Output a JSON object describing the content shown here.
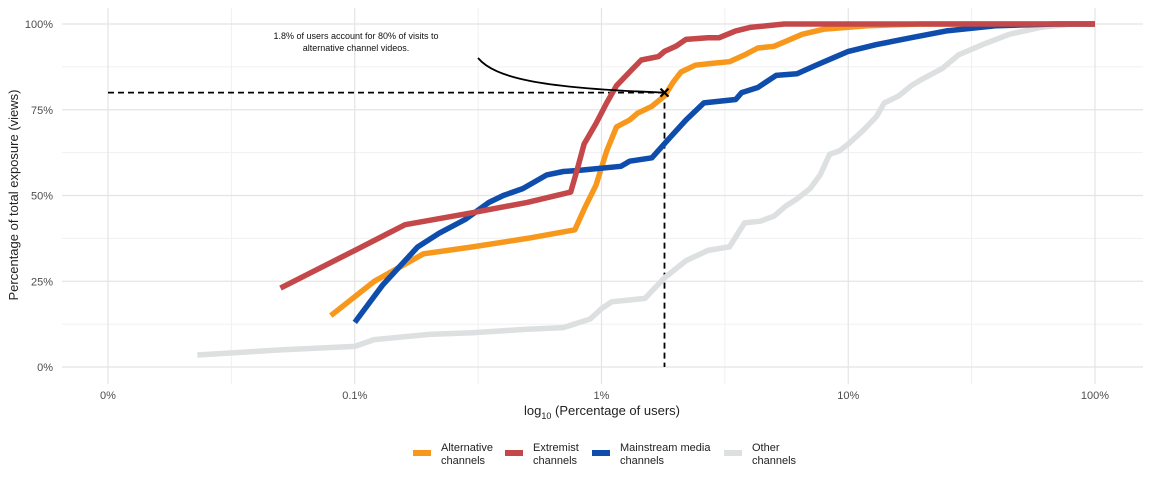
{
  "chart_data": {
    "type": "line",
    "xlabel_prefix": "log",
    "xlabel_sub": "10",
    "xlabel_rest": " (Percentage of users)",
    "ylabel": "Percentage of total exposure (views)",
    "x_scale": "log",
    "x_ticks": [
      {
        "value": 0.01,
        "label": "0%"
      },
      {
        "value": 0.1,
        "label": "0.1%"
      },
      {
        "value": 1,
        "label": "1%"
      },
      {
        "value": 10,
        "label": "10%"
      },
      {
        "value": 100,
        "label": "100%"
      }
    ],
    "y_ticks": [
      {
        "value": 0,
        "label": "0%"
      },
      {
        "value": 25,
        "label": "25%"
      },
      {
        "value": 50,
        "label": "50%"
      },
      {
        "value": 75,
        "label": "75%"
      },
      {
        "value": 100,
        "label": "100%"
      }
    ],
    "xlim": [
      0.01,
      100
    ],
    "ylim": [
      0,
      100
    ],
    "grid": true,
    "legend_position": "bottom",
    "annotation": {
      "lines": [
        "1.8% of users account for 80% of visits to",
        "alternative channel videos."
      ],
      "point": [
        1.8,
        80
      ]
    },
    "series": [
      {
        "name": [
          "Alternative",
          "channels"
        ],
        "color": "#F7981D",
        "points": [
          [
            0.08,
            15
          ],
          [
            0.12,
            25
          ],
          [
            0.19,
            33
          ],
          [
            0.3,
            35
          ],
          [
            0.5,
            37.5
          ],
          [
            0.78,
            40
          ],
          [
            0.85,
            46
          ],
          [
            0.95,
            53
          ],
          [
            1.05,
            63
          ],
          [
            1.15,
            70
          ],
          [
            1.3,
            72
          ],
          [
            1.4,
            74
          ],
          [
            1.6,
            76
          ],
          [
            1.8,
            79
          ],
          [
            1.95,
            83
          ],
          [
            2.1,
            86
          ],
          [
            2.4,
            88
          ],
          [
            2.8,
            88.5
          ],
          [
            3.3,
            89
          ],
          [
            3.8,
            91
          ],
          [
            4.3,
            93
          ],
          [
            5,
            93.5
          ],
          [
            5.6,
            95
          ],
          [
            6.5,
            97
          ],
          [
            8,
            98.5
          ],
          [
            12,
            99.5
          ],
          [
            20,
            100
          ],
          [
            100,
            100
          ]
        ]
      },
      {
        "name": [
          "Extremist",
          "channels"
        ],
        "color": "#C4484A",
        "points": [
          [
            0.05,
            23
          ],
          [
            0.1,
            34
          ],
          [
            0.16,
            41.5
          ],
          [
            0.3,
            45
          ],
          [
            0.5,
            48
          ],
          [
            0.75,
            51
          ],
          [
            0.8,
            58
          ],
          [
            0.85,
            65
          ],
          [
            0.95,
            71
          ],
          [
            1.05,
            77
          ],
          [
            1.15,
            82
          ],
          [
            1.3,
            86
          ],
          [
            1.45,
            89.5
          ],
          [
            1.7,
            90.5
          ],
          [
            1.8,
            92
          ],
          [
            2.0,
            93.5
          ],
          [
            2.2,
            95.5
          ],
          [
            2.7,
            96
          ],
          [
            3.0,
            96
          ],
          [
            3.5,
            98
          ],
          [
            4.0,
            99
          ],
          [
            5.5,
            100
          ],
          [
            100,
            100
          ]
        ]
      },
      {
        "name": [
          "Mainstream media",
          "channels"
        ],
        "color": "#0F4DAD",
        "points": [
          [
            0.1,
            13
          ],
          [
            0.13,
            24
          ],
          [
            0.18,
            35
          ],
          [
            0.22,
            39
          ],
          [
            0.28,
            43
          ],
          [
            0.35,
            48
          ],
          [
            0.4,
            50
          ],
          [
            0.48,
            52
          ],
          [
            0.6,
            56
          ],
          [
            0.7,
            57
          ],
          [
            0.8,
            57.3
          ],
          [
            1.2,
            58.5
          ],
          [
            1.3,
            60
          ],
          [
            1.6,
            61
          ],
          [
            1.9,
            67
          ],
          [
            2.2,
            72
          ],
          [
            2.6,
            77
          ],
          [
            3.5,
            78
          ],
          [
            3.7,
            80
          ],
          [
            4.3,
            81.5
          ],
          [
            5.1,
            85
          ],
          [
            6.2,
            85.5
          ],
          [
            7.4,
            88
          ],
          [
            8.6,
            90
          ],
          [
            10,
            92
          ],
          [
            13,
            94
          ],
          [
            18,
            96
          ],
          [
            25,
            98
          ],
          [
            40,
            99.5
          ],
          [
            70,
            100
          ],
          [
            100,
            100
          ]
        ]
      },
      {
        "name": [
          "Other",
          "channels"
        ],
        "color": "#DDE0E0",
        "points": [
          [
            0.023,
            3.5
          ],
          [
            0.05,
            5
          ],
          [
            0.1,
            6
          ],
          [
            0.12,
            8
          ],
          [
            0.2,
            9.5
          ],
          [
            0.3,
            10
          ],
          [
            0.5,
            11
          ],
          [
            0.7,
            11.5
          ],
          [
            0.9,
            14
          ],
          [
            1.0,
            17
          ],
          [
            1.1,
            19
          ],
          [
            1.5,
            20
          ],
          [
            1.8,
            26
          ],
          [
            2.2,
            31
          ],
          [
            2.7,
            34
          ],
          [
            3.3,
            35
          ],
          [
            3.8,
            42
          ],
          [
            4.4,
            42.5
          ],
          [
            5.0,
            44
          ],
          [
            5.6,
            47
          ],
          [
            6.2,
            49
          ],
          [
            7.0,
            52
          ],
          [
            7.7,
            56
          ],
          [
            8.4,
            62
          ],
          [
            9.2,
            63
          ],
          [
            10,
            65
          ],
          [
            11.5,
            69
          ],
          [
            13,
            73
          ],
          [
            14,
            77
          ],
          [
            16,
            79
          ],
          [
            18,
            82
          ],
          [
            20,
            84
          ],
          [
            24,
            87
          ],
          [
            28,
            91
          ],
          [
            35,
            94
          ],
          [
            45,
            97
          ],
          [
            60,
            99
          ],
          [
            80,
            100
          ],
          [
            100,
            100
          ]
        ]
      }
    ]
  }
}
